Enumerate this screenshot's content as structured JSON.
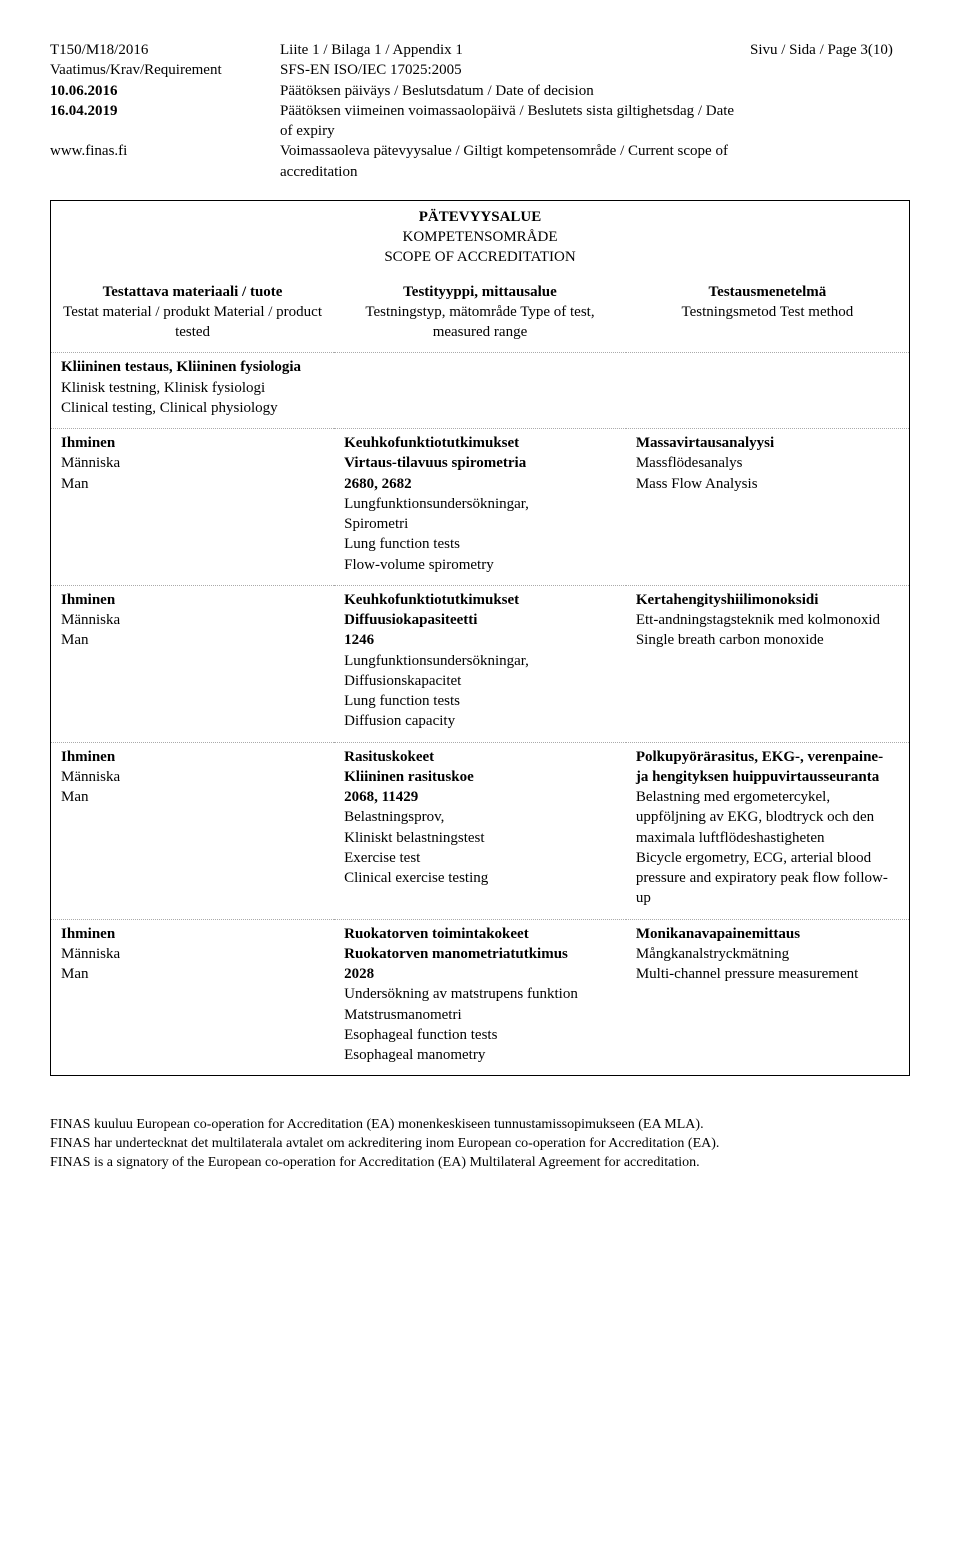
{
  "header": {
    "left": {
      "line1": "T150/M18/2016",
      "line2": "Vaatimus/Krav/Requirement",
      "date1_bold": "10.06.2016",
      "date2_bold": "16.04.2019",
      "url": "www.finas.fi"
    },
    "mid": {
      "line1": "Liite 1 / Bilaga 1 / Appendix 1",
      "line2": "SFS-EN ISO/IEC 17025:2005",
      "line3": "Päätöksen päiväys / Beslutsdatum / Date of decision",
      "line4": "Päätöksen viimeinen voimassaolopäivä / Beslutets sista giltighetsdag / Date of expiry",
      "line5": "Voimassaoleva pätevyysalue / Giltigt kompetensområde / Current scope of accreditation"
    },
    "right": {
      "page": "Sivu / Sida / Page 3(10)"
    }
  },
  "section_title": {
    "l1": "PÄTEVYYSALUE",
    "l2": "KOMPETENSOMRÅDE",
    "l3": "SCOPE OF ACCREDITATION"
  },
  "col_headers": {
    "c1a": "Testattava materiaali / tuote",
    "c1b": "Testat material / produkt",
    "c1c": "Material / product tested",
    "c2a": "Testityyppi, mittausalue",
    "c2b": "Testningstyp, mätområde",
    "c2c": "Type of test, measured range",
    "c3a": "Testausmenetelmä",
    "c3b": "Testningsmetod",
    "c3c": "Test method"
  },
  "section_row": {
    "l1": "Kliininen testaus, Kliininen fysiologia",
    "l2": "Klinisk testning, Klinisk fysiologi",
    "l3": "Clinical testing, Clinical physiology"
  },
  "subject": {
    "l1": "Ihminen",
    "l2": "Människa",
    "l3": "Man"
  },
  "rows": [
    {
      "c2": {
        "b1": "Keuhkofunktiotutkimukset",
        "b2": "Virtaus-tilavuus spirometria",
        "b3": "2680, 2682",
        "n1": "Lungfunktionsundersökningar,",
        "n2": "Spirometri",
        "n3": "Lung function tests",
        "n4": "Flow-volume spirometry"
      },
      "c3": {
        "b1": "Massavirtausanalyysi",
        "n1": "Massflödesanalys",
        "n2": "Mass Flow Analysis"
      }
    },
    {
      "c2": {
        "b1": "Keuhkofunktiotutkimukset",
        "b2": "Diffuusiokapasiteetti",
        "b3": "1246",
        "n1": "Lungfunktionsundersökningar,",
        "n2": "Diffusionskapacitet",
        "n3": "Lung function tests",
        "n4": "Diffusion capacity"
      },
      "c3": {
        "b1": "Kertahengityshiilimonoksidi",
        "n1": "Ett-andningstagsteknik med kolmonoxid",
        "n2": "Single breath carbon monoxide"
      }
    },
    {
      "c2": {
        "b1": "Rasituskokeet",
        "b2": "Kliininen rasituskoe",
        "b3": "2068, 11429",
        "n1": "Belastningsprov,",
        "n2": "Kliniskt belastningstest",
        "n3": "Exercise test",
        "n4": "Clinical exercise testing"
      },
      "c3": {
        "b1": "Polkupyörärasitus, EKG-, verenpaine- ja hengityksen huippuvirtausseuranta",
        "n1": "Belastning med ergometercykel, uppföljning av EKG, blodtryck och den maximala luftflödeshastigheten",
        "n2": "Bicycle ergometry, ECG, arterial blood pressure and expiratory peak flow follow-up"
      }
    },
    {
      "c2": {
        "b1": "Ruokatorven toimintakokeet",
        "b2": "Ruokatorven manometriatutkimus",
        "b3": "2028",
        "n1": "Undersökning av matstrupens funktion",
        "n2": "Matstrusmanometri",
        "n3": "Esophageal function tests",
        "n4": "Esophageal manometry"
      },
      "c3": {
        "b1": "Monikanavapainemittaus",
        "n1": "Mångkanalstryckmätning",
        "n2": "Multi-channel pressure measurement"
      }
    }
  ],
  "footer": {
    "l1": "FINAS kuuluu European co-operation for Accreditation (EA) monenkeskiseen tunnustamissopimukseen (EA MLA).",
    "l2": "FINAS har undertecknat det multilaterala avtalet om ackreditering inom European co-operation for Accreditation (EA).",
    "l3": "FINAS is a signatory of the European co-operation for Accreditation (EA) Multilateral Agreement for accreditation."
  }
}
